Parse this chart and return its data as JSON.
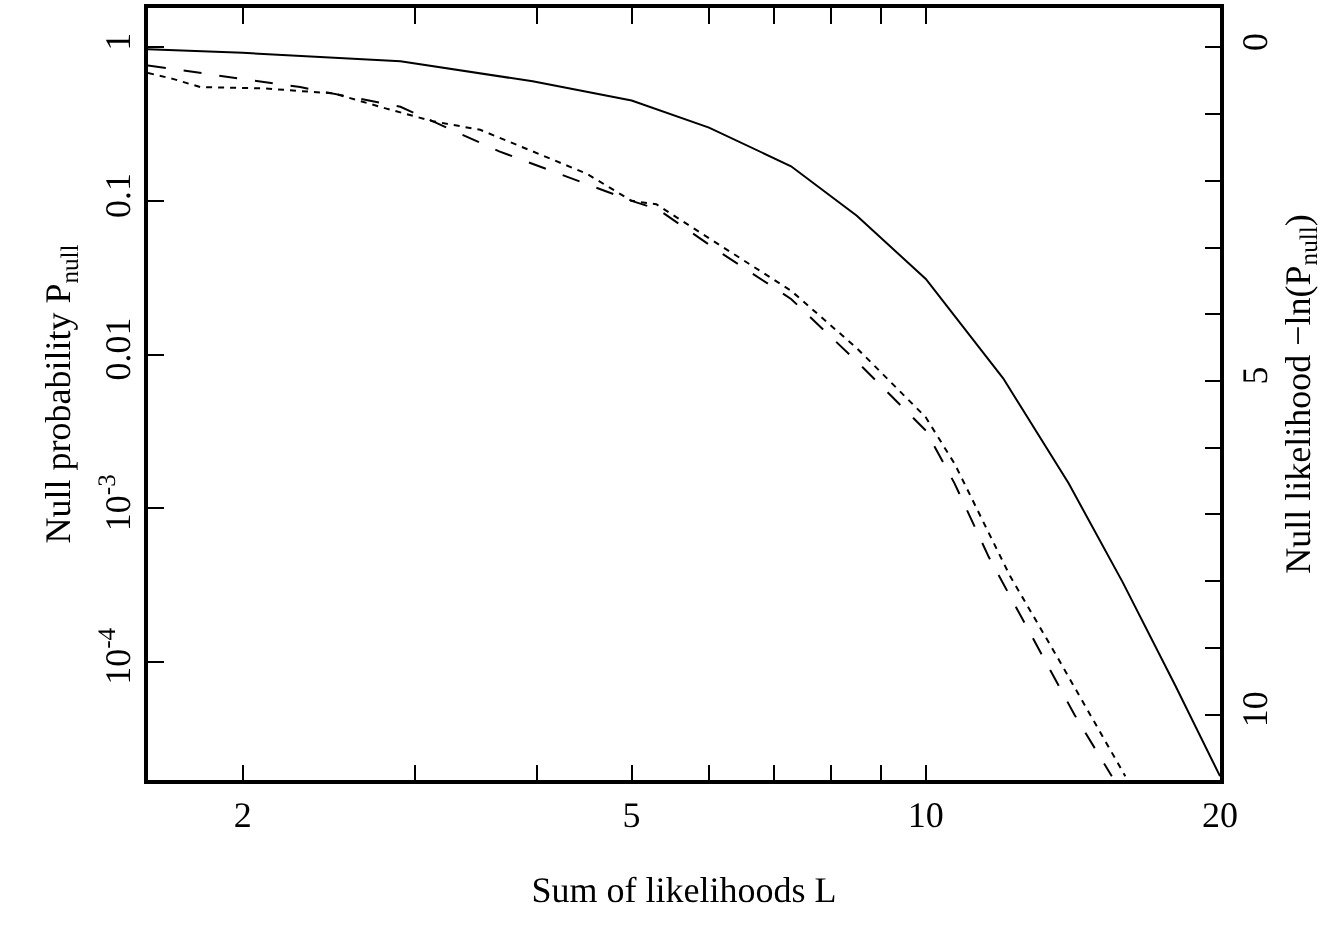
{
  "chart_data": {
    "type": "line",
    "xlabel": "Sum of likelihoods L",
    "ylabel": "Null probability P$_{null}$",
    "y2label": "Null likelihood −ln(P$_{null}$)",
    "log": "xy",
    "xlim": [
      1.6,
      20
    ],
    "xticks": [
      2,
      {
        "value": 3,
        "label": null
      },
      {
        "value": 4,
        "label": null
      },
      5,
      {
        "value": 6,
        "label": null
      },
      {
        "value": 7,
        "label": null
      },
      {
        "value": 8,
        "label": null
      },
      {
        "value": 9,
        "label": null
      },
      10,
      20
    ],
    "ylim": [
      1.7e-05,
      1.8
    ],
    "yticks": [
      1,
      0.1,
      0.01,
      {
        "value": 0.001,
        "label": "10$^{-3}$"
      },
      {
        "value": 0.0001,
        "label": "10$^{-4}$"
      }
    ],
    "y2lim": [
      10.98,
      -0.59
    ],
    "y2ticks": [
      0,
      {
        "value": 1,
        "label": null
      },
      {
        "value": 2,
        "label": null
      },
      {
        "value": 3,
        "label": null
      },
      {
        "value": 4,
        "label": null
      },
      5,
      {
        "value": 6,
        "label": null
      },
      {
        "value": 7,
        "label": null
      },
      {
        "value": 8,
        "label": null
      },
      {
        "value": 9,
        "label": null
      },
      10
    ],
    "series": [
      {
        "color": "#000000",
        "line_style": "solid",
        "x": [
          1.6,
          2.0,
          2.9,
          3.96,
          5.0,
          6.0,
          7.28,
          8.5,
          10,
          12,
          14,
          15.9,
          18,
          20
        ],
        "values": [
          0.97,
          0.92,
          0.81,
          0.6,
          0.45,
          0.3,
          0.168,
          0.08,
          0.031,
          0.007,
          0.00145,
          0.00033,
          7e-05,
          1.8e-05
        ]
      },
      {
        "color": "#000000",
        "line_style": "dashed",
        "x": [
          1.6,
          2.29,
          2.9,
          3.66,
          5.0,
          5.32,
          6.2,
          7.28,
          8.5,
          10,
          10.7,
          11.6,
          14.2,
          15.5
        ],
        "values": [
          0.76,
          0.55,
          0.41,
          0.21,
          0.1,
          0.088,
          0.045,
          0.023,
          0.009,
          0.0032,
          0.00145,
          0.00048,
          4.5e-05,
          1.8e-05
        ]
      },
      {
        "color": "#000000",
        "line_style": "dotted",
        "x": [
          1.6,
          1.7,
          1.81,
          2.1,
          2.48,
          2.8,
          3.13,
          3.5,
          3.96,
          4.5,
          5.0,
          5.3,
          6.2,
          7.28,
          8.5,
          10,
          10.7,
          12.2,
          13.6,
          16.0
        ],
        "values": [
          0.68,
          0.62,
          0.55,
          0.54,
          0.5,
          0.4,
          0.33,
          0.29,
          0.21,
          0.15,
          0.1,
          0.095,
          0.05,
          0.026,
          0.011,
          0.0039,
          0.00195,
          0.00036,
          0.00011,
          1.8e-05
        ]
      }
    ]
  }
}
